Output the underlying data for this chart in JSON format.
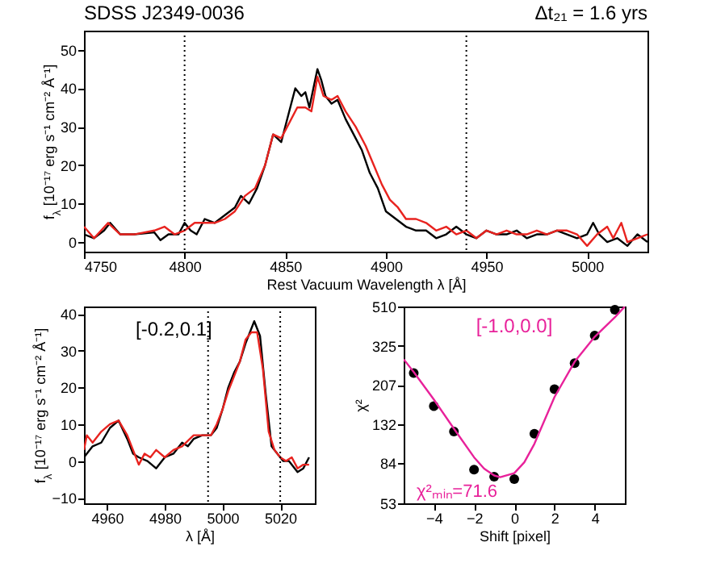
{
  "chart_data": [
    {
      "type": "line",
      "title": "SDSS J2349-0036",
      "annotations": [
        "Δt₂₁ = 1.6 yrs"
      ],
      "xlabel": "Rest Vacuum Wavelength λ [Å]",
      "ylabel": "f$_{λ}$ [10⁻¹⁷ erg s⁻¹ cm⁻² Å⁻¹]",
      "xlim": [
        4750,
        5030
      ],
      "xticks": [
        4750,
        4800,
        4850,
        4900,
        4950,
        5000
      ],
      "ylim": [
        -2.5,
        55
      ],
      "yticks": [
        0,
        10,
        20,
        30,
        40,
        50
      ],
      "ref_lines": [
        {
          "axis": "x",
          "value": 4800,
          "line_style": "dotted"
        },
        {
          "axis": "x",
          "value": 4940,
          "line_style": "dotted"
        }
      ],
      "series": [
        {
          "color": "#000000",
          "x": [
            4750,
            4755,
            4760,
            4763,
            4768,
            4775,
            4785,
            4788,
            4792,
            4797,
            4800,
            4803,
            4806,
            4810,
            4815,
            4820,
            4825,
            4828,
            4832,
            4836,
            4840,
            4844,
            4848,
            4852,
            4855,
            4858,
            4860,
            4862,
            4864,
            4866,
            4868,
            4870,
            4873,
            4876,
            4880,
            4884,
            4888,
            4892,
            4896,
            4900,
            4905,
            4910,
            4915,
            4920,
            4925,
            4930,
            4935,
            4940,
            4945,
            4950,
            4955,
            4960,
            4965,
            4970,
            4975,
            4980,
            4985,
            4990,
            4995,
            5000,
            5003,
            5006,
            5010,
            5015,
            5020,
            5025,
            5030
          ],
          "values": [
            2,
            1,
            3,
            5,
            2,
            2,
            2.5,
            0.5,
            2,
            2,
            5,
            3,
            2,
            6,
            5,
            7,
            9,
            12,
            10,
            14,
            20,
            28,
            26,
            34,
            40,
            38,
            39,
            35,
            40,
            45,
            42,
            38,
            36,
            37,
            32,
            28,
            24,
            18,
            14,
            8,
            6,
            4,
            3,
            3,
            1,
            2,
            4,
            2,
            1,
            3,
            2,
            2,
            3,
            1,
            2,
            2,
            3,
            2,
            1,
            2,
            5,
            2,
            0,
            1,
            -1,
            2,
            0
          ]
        },
        {
          "color": "#e8231f",
          "x": [
            4750,
            4755,
            4762,
            4768,
            4775,
            4785,
            4790,
            4795,
            4800,
            4805,
            4810,
            4815,
            4820,
            4825,
            4830,
            4835,
            4840,
            4844,
            4848,
            4852,
            4856,
            4860,
            4863,
            4866,
            4869,
            4873,
            4876,
            4880,
            4885,
            4890,
            4894,
            4898,
            4902,
            4906,
            4910,
            4915,
            4920,
            4925,
            4930,
            4935,
            4940,
            4945,
            4950,
            4955,
            4960,
            4965,
            4970,
            4975,
            4980,
            4985,
            4990,
            4995,
            5000,
            5005,
            5010,
            5013,
            5017,
            5020,
            5025,
            5030
          ],
          "values": [
            4,
            1,
            5,
            2,
            2,
            3,
            4,
            2,
            3,
            5,
            5,
            5,
            6,
            8,
            12,
            14,
            20,
            28,
            27,
            31,
            35,
            35,
            34,
            43,
            38,
            37,
            38,
            34,
            30,
            25,
            20,
            15,
            11,
            9,
            6,
            6,
            5,
            3,
            4,
            2,
            3,
            1,
            3,
            2,
            3,
            2,
            2,
            3,
            2,
            3,
            3,
            2,
            -1,
            2,
            4,
            1,
            5,
            0,
            1,
            2
          ]
        }
      ]
    },
    {
      "type": "line",
      "annotations": [
        "[-0.2,0.1]"
      ],
      "xlabel": "λ [Å]",
      "ylabel": "f$_{λ}$ [10⁻¹⁷ erg s⁻¹ cm⁻² Å⁻¹]",
      "xlim": [
        4952,
        5032
      ],
      "xticks": [
        4960,
        4980,
        5000,
        5020
      ],
      "ylim": [
        -11.5,
        42
      ],
      "yticks": [
        -10,
        0,
        10,
        20,
        30,
        40
      ],
      "ref_lines": [
        {
          "axis": "x",
          "value": 4995,
          "line_style": "dotted"
        },
        {
          "axis": "x",
          "value": 5020,
          "line_style": "dotted"
        }
      ],
      "series": [
        {
          "color": "#000000",
          "x": [
            4952,
            4955,
            4958,
            4961,
            4964,
            4967,
            4969,
            4971,
            4974,
            4977,
            4980,
            4983,
            4986,
            4988,
            4990,
            4993,
            4996,
            4998,
            5000,
            5002,
            5004,
            5006,
            5008,
            5011,
            5013,
            5015,
            5017,
            5019,
            5021,
            5023,
            5026,
            5028,
            5030
          ],
          "values": [
            1,
            4,
            5,
            9,
            11,
            6,
            2,
            1,
            0,
            -2,
            1,
            2,
            5,
            4,
            6,
            7,
            7,
            9,
            14,
            20,
            24,
            27,
            32,
            38,
            34,
            18,
            4,
            2,
            0,
            0,
            -3,
            -2,
            1
          ]
        },
        {
          "color": "#e8231f",
          "x": [
            4952,
            4953,
            4955,
            4958,
            4961,
            4964,
            4967,
            4969,
            4971,
            4973,
            4975,
            4977,
            4980,
            4983,
            4986,
            4990,
            4993,
            4996,
            4998,
            5000,
            5002,
            5004,
            5006,
            5008,
            5010,
            5012,
            5014,
            5016,
            5018,
            5020,
            5022,
            5024,
            5026,
            5028,
            5030
          ],
          "values": [
            3,
            7,
            5,
            8,
            10,
            11,
            7,
            3,
            -1,
            2,
            1,
            3,
            1,
            3,
            4,
            7,
            7,
            7,
            10,
            14,
            19,
            23,
            27,
            33,
            35,
            35,
            25,
            8,
            3,
            1,
            0,
            1,
            -2,
            -1,
            -1
          ]
        }
      ]
    },
    {
      "type": "scatter",
      "annotations": [
        "[-1.0,0.0]",
        "χ²ₘᵢₙ=71.6"
      ],
      "xlabel": "Shift [pixel]",
      "ylabel": "χ²",
      "log": "y",
      "xlim": [
        -5.5,
        5.5
      ],
      "xticks": [
        -4,
        -2,
        0,
        2,
        4
      ],
      "ylim": [
        53,
        510
      ],
      "yticks": [
        53,
        84,
        132,
        207,
        325,
        510
      ],
      "series": [
        {
          "color": "#000000",
          "marker": "circle",
          "x": [
            -5,
            -4,
            -3,
            -2,
            -1,
            0,
            1,
            2,
            3,
            4,
            5
          ],
          "values": [
            237,
            162,
            121,
            78,
            72,
            70,
            118,
            197,
            266,
            365,
            491
          ]
        },
        {
          "type": "line",
          "color": "#e8219a",
          "x": [
            -5.5,
            -5,
            -4,
            -3,
            -2,
            -1.5,
            -1,
            -0.7,
            0,
            0.5,
            1,
            2,
            3,
            4,
            5,
            5.5
          ],
          "values": [
            278,
            240,
            175,
            125,
            90,
            79,
            73,
            71.6,
            75,
            85,
            105,
            180,
            270,
            360,
            450,
            510
          ]
        }
      ]
    }
  ]
}
